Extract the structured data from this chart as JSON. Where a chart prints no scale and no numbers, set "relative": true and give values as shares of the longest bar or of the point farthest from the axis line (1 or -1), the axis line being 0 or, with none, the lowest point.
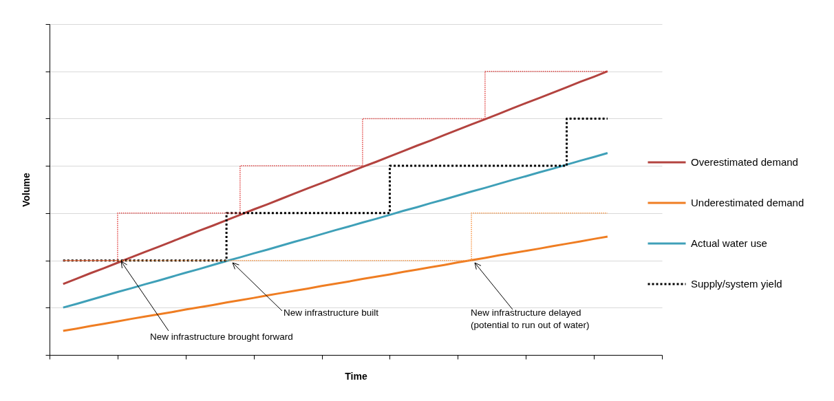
{
  "chart_data": {
    "type": "line",
    "xlabel": "Time",
    "ylabel": "Volume",
    "relative": true,
    "grid": "y",
    "legend": "right",
    "tick_labels": false,
    "categories": [
      null,
      null,
      null,
      null,
      null,
      null,
      null,
      null,
      null,
      null,
      null,
      null,
      null,
      null,
      null,
      null,
      null,
      null,
      null,
      null,
      null,
      null,
      null,
      null,
      null,
      null,
      null,
      null,
      null,
      null,
      null,
      null,
      null,
      null,
      null,
      null,
      null,
      null,
      null,
      null,
      null,
      null,
      null,
      null,
      null,
      null
    ],
    "series": [
      {
        "name": "Overestimated demand",
        "color": "#b3433f",
        "values": [
          null,
          0.25,
          0.269,
          0.288,
          0.306,
          0.325,
          0.344,
          0.363,
          0.381,
          0.4,
          0.419,
          0.438,
          0.456,
          0.475,
          0.494,
          0.513,
          0.531,
          0.55,
          0.569,
          0.588,
          0.606,
          0.625,
          0.644,
          0.663,
          0.681,
          0.7,
          0.719,
          0.738,
          0.756,
          0.775,
          0.794,
          0.813,
          0.831,
          0.85,
          0.869,
          0.888,
          0.906,
          0.925,
          0.944,
          0.963,
          0.981,
          1,
          null,
          null,
          null,
          null
        ]
      },
      {
        "name": "Underestimated demand",
        "color": "#ef7d22",
        "values": [
          null,
          0.085,
          0.093,
          0.102,
          0.11,
          0.118,
          0.127,
          0.135,
          0.143,
          0.151,
          0.16,
          0.168,
          0.176,
          0.185,
          0.193,
          0.201,
          0.21,
          0.218,
          0.226,
          0.234,
          0.243,
          0.251,
          0.259,
          0.268,
          0.276,
          0.284,
          0.293,
          0.301,
          0.309,
          0.317,
          0.326,
          0.334,
          0.342,
          0.351,
          0.359,
          0.367,
          0.375,
          0.384,
          0.392,
          0.4,
          0.409,
          0.417,
          null,
          null,
          null,
          null
        ]
      },
      {
        "name": "Actual water use",
        "color": "#3fa0b8",
        "values": [
          null,
          0.167,
          0.18,
          0.194,
          0.208,
          0.222,
          0.235,
          0.249,
          0.262,
          0.276,
          0.29,
          0.303,
          0.317,
          0.331,
          0.344,
          0.358,
          0.371,
          0.385,
          0.399,
          0.412,
          0.426,
          0.44,
          0.453,
          0.467,
          0.48,
          0.494,
          0.508,
          0.521,
          0.535,
          0.548,
          0.562,
          0.576,
          0.589,
          0.603,
          0.617,
          0.63,
          0.644,
          0.657,
          0.671,
          0.685,
          0.698,
          0.712,
          null,
          null,
          null,
          null
        ]
      },
      {
        "name": "Supply/system yield",
        "type": "step",
        "color": "#000000",
        "line_style": "dotted",
        "values": [
          null,
          0.333,
          0.333,
          0.333,
          0.333,
          0.333,
          0.333,
          0.333,
          0.333,
          0.333,
          0.333,
          0.333,
          0.333,
          0.5,
          0.5,
          0.5,
          0.5,
          0.5,
          0.5,
          0.5,
          0.5,
          0.5,
          0.5,
          0.5,
          0.5,
          0.667,
          0.667,
          0.667,
          0.667,
          0.667,
          0.667,
          0.667,
          0.667,
          0.667,
          0.667,
          0.667,
          0.667,
          0.667,
          0.833,
          0.833,
          0.833,
          0.833,
          null,
          null,
          null,
          null
        ]
      },
      {
        "type": "step",
        "color": "#e0403f",
        "line_style": "dotted",
        "values": [
          null,
          0.333,
          0.333,
          0.333,
          0.333,
          0.5,
          0.5,
          0.5,
          0.5,
          0.5,
          0.5,
          0.5,
          0.5,
          0.5,
          0.667,
          0.667,
          0.667,
          0.667,
          0.667,
          0.667,
          0.667,
          0.667,
          0.667,
          0.833,
          0.833,
          0.833,
          0.833,
          0.833,
          0.833,
          0.833,
          0.833,
          0.833,
          1,
          1,
          1,
          1,
          1,
          1,
          1,
          1,
          1,
          1,
          null,
          null,
          null,
          null
        ]
      },
      {
        "type": "step",
        "color": "#f79646",
        "line_style": "dotted",
        "values": [
          null,
          0.333,
          0.333,
          0.333,
          0.333,
          0.333,
          0.333,
          0.333,
          0.333,
          0.333,
          0.333,
          0.333,
          0.333,
          0.333,
          0.333,
          0.333,
          0.333,
          0.333,
          0.333,
          0.333,
          0.333,
          0.333,
          0.333,
          0.333,
          0.333,
          0.333,
          0.333,
          0.333,
          0.333,
          0.333,
          0.333,
          0.5,
          0.5,
          0.5,
          0.5,
          0.5,
          0.5,
          0.5,
          0.5,
          0.5,
          0.5,
          0.5,
          null,
          null,
          null,
          null
        ]
      }
    ],
    "annotations": [
      "New infrastructure brought forward",
      "New infrastructure built",
      "New infrastructure delayed\n(potential to run out of water)"
    ]
  }
}
